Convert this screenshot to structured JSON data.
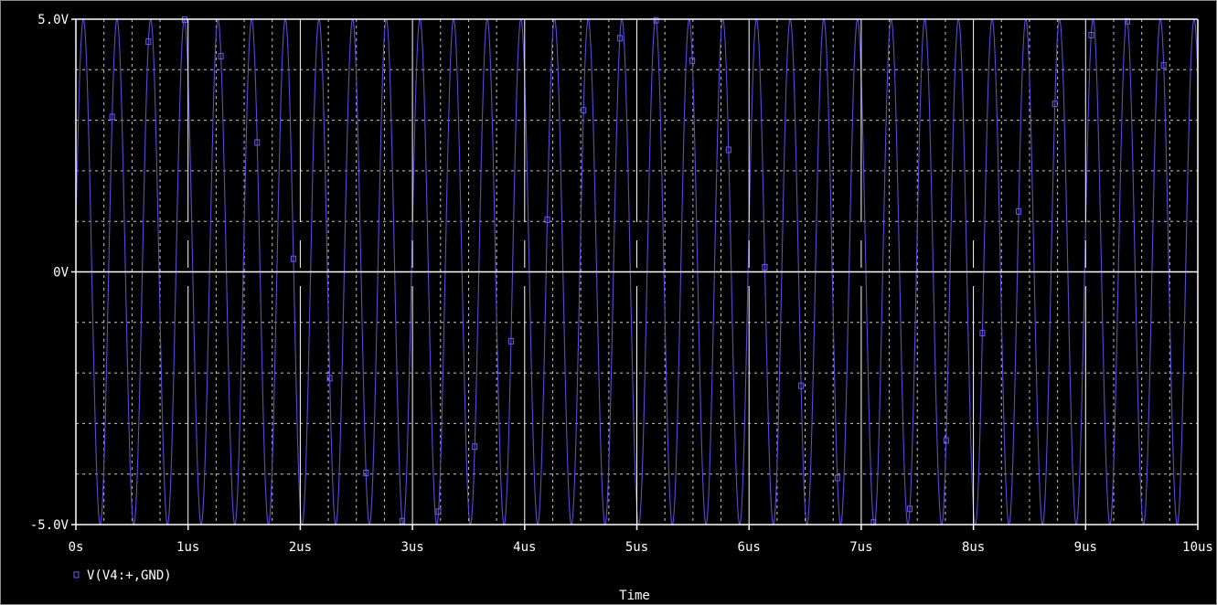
{
  "colors": {
    "background": "#000000",
    "axis": "#ffffff",
    "grid": "#e8e8e8",
    "trace": "#5a4ad6",
    "marker": "#6b5cf0",
    "text": "#ffffff"
  },
  "chart_data": {
    "type": "line",
    "title": "",
    "xlabel": "Time",
    "ylabel": "",
    "xlim": [
      0,
      10
    ],
    "ylim": [
      -5,
      5
    ],
    "x_unit": "us",
    "y_unit": "V",
    "grid": true,
    "x_ticks": [
      {
        "value": 0,
        "label": "0s"
      },
      {
        "value": 1,
        "label": "1us"
      },
      {
        "value": 2,
        "label": "2us"
      },
      {
        "value": 3,
        "label": "3us"
      },
      {
        "value": 4,
        "label": "4us"
      },
      {
        "value": 5,
        "label": "5us"
      },
      {
        "value": 6,
        "label": "6us"
      },
      {
        "value": 7,
        "label": "7us"
      },
      {
        "value": 8,
        "label": "8us"
      },
      {
        "value": 9,
        "label": "9us"
      },
      {
        "value": 10,
        "label": "10us"
      }
    ],
    "y_ticks": [
      {
        "value": 5,
        "label": "5.0V"
      },
      {
        "value": 0,
        "label": "0V"
      },
      {
        "value": -5,
        "label": "-5.0V"
      }
    ],
    "x_minor_grid": [
      0.25,
      0.5,
      0.75,
      1.25,
      1.5,
      1.75,
      2.25,
      2.5,
      2.75,
      3.25,
      3.5,
      3.75,
      4.25,
      4.5,
      4.75,
      5.25,
      5.5,
      5.75,
      6.25,
      6.5,
      6.75,
      7.25,
      7.5,
      7.75,
      8.25,
      8.5,
      8.75,
      9.25,
      9.5,
      9.75
    ],
    "y_minor_grid": [
      4,
      3,
      2,
      1,
      -1,
      -2,
      -3,
      -4
    ],
    "series": [
      {
        "name": "V(V4:+,GND)",
        "amplitude": 5,
        "period": 0.3,
        "phase_deg": 10,
        "x_start": 0,
        "x_end": 10,
        "sample_step": 0.0025,
        "marker_step": 0.3232
      }
    ],
    "legend": {
      "position": "bottom-left",
      "marker": "square"
    }
  }
}
